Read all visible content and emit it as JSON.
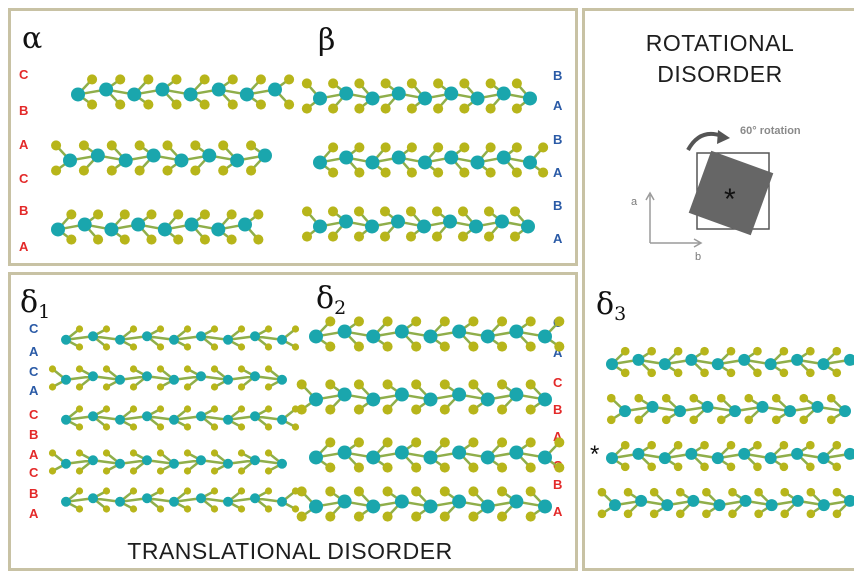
{
  "polytypes": {
    "alpha": {
      "symbol": "α",
      "stacking": [
        "C",
        "B",
        "A",
        "C",
        "B",
        "A"
      ]
    },
    "beta": {
      "symbol": "β",
      "stacking": [
        "B",
        "A",
        "B",
        "A",
        "B",
        "A"
      ]
    }
  },
  "disorder": {
    "delta1": {
      "symbol": "δ",
      "sub": "1",
      "stacking": [
        "C",
        "A",
        "C",
        "A",
        "C",
        "B",
        "A",
        "C",
        "B",
        "A"
      ]
    },
    "delta2": {
      "symbol": "δ",
      "sub": "2",
      "stacking": [
        "C",
        "A",
        "C",
        "B",
        "A",
        "C",
        "B",
        "A"
      ]
    },
    "delta3": {
      "symbol": "δ",
      "sub": "3",
      "marker": "*"
    }
  },
  "translational_title": "TRANSLATIONAL DISORDER",
  "rotational": {
    "title_line1": "ROTATIONAL",
    "title_line2": "DISORDER",
    "rotation_label": "60° rotation",
    "axis_a": "a",
    "axis_b": "b",
    "center_marker": "*"
  },
  "colors": {
    "metal_atom": "#1aa6ad",
    "chalcogen_atom": "#b7b51a",
    "stack_red": "#e32929",
    "stack_blue": "#2a5aa6",
    "panel_border": "#c8c2a4",
    "square_fill": "#666666"
  }
}
